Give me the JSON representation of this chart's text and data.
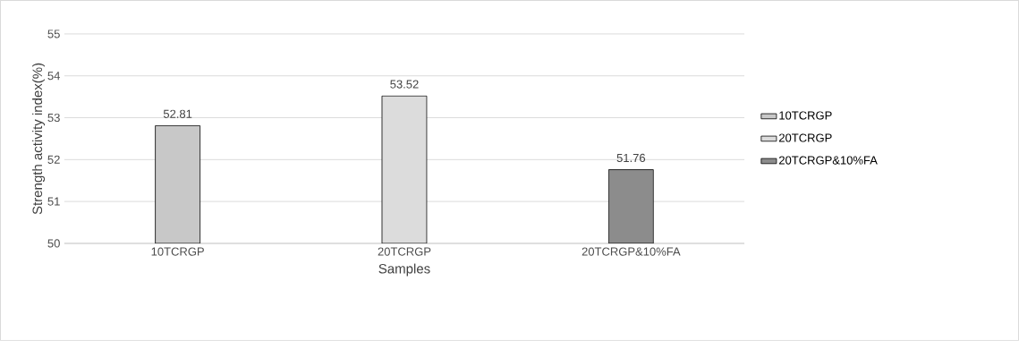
{
  "chart_data": {
    "type": "bar",
    "xlabel": "Samples",
    "ylabel": "Strength activity index(%)",
    "categories": [
      "10TCRGP",
      "20TCRGP",
      "20TCRGP&10%FA"
    ],
    "series": [
      {
        "name": "10TCRGP",
        "color": "#c8c8c8",
        "values": [
          52.81,
          null,
          null
        ]
      },
      {
        "name": "20TCRGP",
        "color": "#dcdcdc",
        "values": [
          null,
          53.52,
          null
        ]
      },
      {
        "name": "20TCRGP&10%FA",
        "color": "#8c8c8c",
        "values": [
          null,
          null,
          51.76
        ]
      }
    ],
    "ylim": [
      50,
      55
    ],
    "yticks": [
      50,
      51,
      52,
      53,
      54,
      55
    ],
    "grid": "y",
    "legend": "right",
    "data_labels": true
  }
}
